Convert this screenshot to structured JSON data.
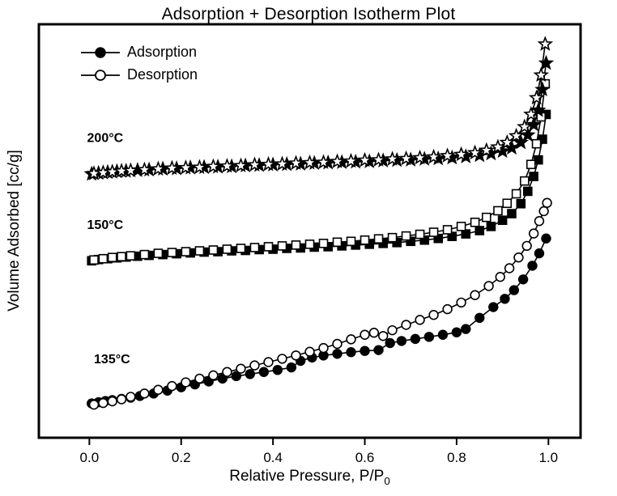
{
  "title": "Adsorption + Desorption Isotherm Plot",
  "chart_data": {
    "type": "line",
    "title": "Adsorption + Desorption Isotherm Plot",
    "xlabel": "Relative Pressure, P/P",
    "xlabel_sub": "0",
    "ylabel": "Volume Adsorbed [cc/g]",
    "xlim": [
      -0.11,
      1.07
    ],
    "ylim": [
      0,
      100
    ],
    "x_ticks": [
      0.0,
      0.2,
      0.4,
      0.6,
      0.8,
      1.0
    ],
    "x_tick_labels": [
      "0.0",
      "0.2",
      "0.4",
      "0.6",
      "0.8",
      "1.0"
    ],
    "y_tick_labels_shown": false,
    "grid": false,
    "line_color": "#000000",
    "background_color": "#ffffff",
    "legend": {
      "position": "top-left-inside",
      "items": [
        {
          "label": "Adsorption",
          "marker": "filled-circle"
        },
        {
          "label": "Desorption",
          "marker": "open-circle"
        }
      ]
    },
    "annotations": [
      {
        "text": "200°C",
        "x": -0.005,
        "y": 71.5
      },
      {
        "text": "150°C",
        "x": -0.005,
        "y": 50.5
      },
      {
        "text": "135°C",
        "x": 0.01,
        "y": 18.0
      }
    ],
    "series": [
      {
        "name": "135C-adsorption",
        "temperature": "135°C",
        "branch": "adsorption",
        "marker": "circle",
        "fill": "filled",
        "points": [
          [
            0.005,
            8.3
          ],
          [
            0.02,
            8.6
          ],
          [
            0.035,
            8.9
          ],
          [
            0.05,
            9.1
          ],
          [
            0.07,
            9.4
          ],
          [
            0.09,
            9.7
          ],
          [
            0.11,
            10.1
          ],
          [
            0.14,
            10.7
          ],
          [
            0.17,
            11.4
          ],
          [
            0.2,
            12.2
          ],
          [
            0.23,
            12.9
          ],
          [
            0.26,
            13.6
          ],
          [
            0.29,
            14.3
          ],
          [
            0.32,
            14.9
          ],
          [
            0.35,
            15.4
          ],
          [
            0.38,
            15.9
          ],
          [
            0.41,
            16.4
          ],
          [
            0.44,
            17.0
          ],
          [
            0.46,
            18.6
          ],
          [
            0.485,
            19.4
          ],
          [
            0.51,
            19.9
          ],
          [
            0.54,
            20.3
          ],
          [
            0.57,
            20.7
          ],
          [
            0.6,
            21.0
          ],
          [
            0.63,
            21.2
          ],
          [
            0.655,
            22.9
          ],
          [
            0.68,
            23.4
          ],
          [
            0.71,
            23.9
          ],
          [
            0.74,
            24.4
          ],
          [
            0.77,
            24.9
          ],
          [
            0.8,
            25.5
          ],
          [
            0.82,
            26.3
          ],
          [
            0.85,
            29.0
          ],
          [
            0.88,
            31.6
          ],
          [
            0.905,
            33.6
          ],
          [
            0.925,
            35.7
          ],
          [
            0.945,
            38.3
          ],
          [
            0.965,
            41.6
          ],
          [
            0.98,
            44.6
          ],
          [
            0.995,
            48.2
          ]
        ]
      },
      {
        "name": "135C-desorption",
        "temperature": "135°C",
        "branch": "desorption",
        "marker": "circle",
        "fill": "open",
        "points": [
          [
            0.01,
            8.0
          ],
          [
            0.03,
            8.4
          ],
          [
            0.05,
            8.8
          ],
          [
            0.07,
            9.3
          ],
          [
            0.09,
            9.9
          ],
          [
            0.12,
            10.7
          ],
          [
            0.15,
            11.6
          ],
          [
            0.18,
            12.5
          ],
          [
            0.21,
            13.4
          ],
          [
            0.24,
            14.3
          ],
          [
            0.27,
            15.1
          ],
          [
            0.3,
            15.9
          ],
          [
            0.33,
            16.7
          ],
          [
            0.36,
            17.5
          ],
          [
            0.39,
            18.3
          ],
          [
            0.42,
            19.1
          ],
          [
            0.45,
            19.9
          ],
          [
            0.48,
            20.8
          ],
          [
            0.51,
            21.7
          ],
          [
            0.54,
            22.7
          ],
          [
            0.57,
            23.8
          ],
          [
            0.6,
            24.9
          ],
          [
            0.62,
            25.4
          ],
          [
            0.64,
            24.6
          ],
          [
            0.66,
            26.0
          ],
          [
            0.69,
            27.3
          ],
          [
            0.72,
            28.5
          ],
          [
            0.75,
            29.7
          ],
          [
            0.78,
            31.1
          ],
          [
            0.81,
            32.7
          ],
          [
            0.84,
            34.5
          ],
          [
            0.87,
            36.7
          ],
          [
            0.895,
            38.9
          ],
          [
            0.915,
            41.0
          ],
          [
            0.935,
            43.6
          ],
          [
            0.953,
            46.4
          ],
          [
            0.968,
            49.4
          ],
          [
            0.98,
            52.4
          ],
          [
            0.99,
            54.8
          ],
          [
            0.997,
            56.8
          ]
        ]
      },
      {
        "name": "150C-adsorption",
        "temperature": "150°C",
        "branch": "adsorption",
        "marker": "square",
        "fill": "filled",
        "points": [
          [
            0.005,
            42.8
          ],
          [
            0.02,
            43.1
          ],
          [
            0.04,
            43.3
          ],
          [
            0.06,
            43.5
          ],
          [
            0.08,
            43.7
          ],
          [
            0.105,
            43.9
          ],
          [
            0.13,
            44.1
          ],
          [
            0.16,
            44.3
          ],
          [
            0.19,
            44.5
          ],
          [
            0.22,
            44.7
          ],
          [
            0.25,
            44.9
          ],
          [
            0.28,
            45.0
          ],
          [
            0.31,
            45.2
          ],
          [
            0.34,
            45.3
          ],
          [
            0.37,
            45.5
          ],
          [
            0.4,
            45.6
          ],
          [
            0.43,
            45.8
          ],
          [
            0.46,
            45.9
          ],
          [
            0.49,
            46.1
          ],
          [
            0.52,
            46.2
          ],
          [
            0.55,
            46.4
          ],
          [
            0.58,
            46.6
          ],
          [
            0.61,
            46.8
          ],
          [
            0.64,
            47.0
          ],
          [
            0.67,
            47.2
          ],
          [
            0.7,
            47.5
          ],
          [
            0.73,
            47.8
          ],
          [
            0.76,
            48.2
          ],
          [
            0.79,
            48.7
          ],
          [
            0.82,
            49.3
          ],
          [
            0.85,
            50.1
          ],
          [
            0.875,
            51.1
          ],
          [
            0.9,
            52.6
          ],
          [
            0.92,
            54.2
          ],
          [
            0.94,
            56.6
          ],
          [
            0.955,
            59.6
          ],
          [
            0.968,
            63.2
          ],
          [
            0.978,
            67.2
          ],
          [
            0.987,
            72.2
          ],
          [
            0.995,
            78.2
          ]
        ]
      },
      {
        "name": "150C-desorption",
        "temperature": "150°C",
        "branch": "desorption",
        "marker": "square",
        "fill": "open",
        "points": [
          [
            0.01,
            43.0
          ],
          [
            0.03,
            43.3
          ],
          [
            0.05,
            43.6
          ],
          [
            0.07,
            43.8
          ],
          [
            0.09,
            44.0
          ],
          [
            0.12,
            44.3
          ],
          [
            0.15,
            44.6
          ],
          [
            0.18,
            44.8
          ],
          [
            0.21,
            45.0
          ],
          [
            0.24,
            45.2
          ],
          [
            0.27,
            45.4
          ],
          [
            0.3,
            45.6
          ],
          [
            0.33,
            45.8
          ],
          [
            0.36,
            46.0
          ],
          [
            0.39,
            46.2
          ],
          [
            0.42,
            46.4
          ],
          [
            0.45,
            46.6
          ],
          [
            0.48,
            46.8
          ],
          [
            0.51,
            47.0
          ],
          [
            0.54,
            47.3
          ],
          [
            0.57,
            47.5
          ],
          [
            0.6,
            47.8
          ],
          [
            0.63,
            48.1
          ],
          [
            0.66,
            48.4
          ],
          [
            0.69,
            48.8
          ],
          [
            0.72,
            49.2
          ],
          [
            0.75,
            49.7
          ],
          [
            0.78,
            50.3
          ],
          [
            0.81,
            51.1
          ],
          [
            0.84,
            52.1
          ],
          [
            0.865,
            53.3
          ],
          [
            0.89,
            54.9
          ],
          [
            0.91,
            56.7
          ],
          [
            0.93,
            59.0
          ],
          [
            0.948,
            62.1
          ],
          [
            0.962,
            66.1
          ],
          [
            0.974,
            71.1
          ],
          [
            0.984,
            77.6
          ],
          [
            0.993,
            85.6
          ]
        ]
      },
      {
        "name": "200C-adsorption",
        "temperature": "200°C",
        "branch": "adsorption",
        "marker": "star",
        "fill": "filled",
        "points": [
          [
            0.005,
            63.8
          ],
          [
            0.02,
            64.0
          ],
          [
            0.04,
            64.2
          ],
          [
            0.06,
            64.4
          ],
          [
            0.08,
            64.5
          ],
          [
            0.105,
            64.7
          ],
          [
            0.13,
            64.8
          ],
          [
            0.16,
            65.0
          ],
          [
            0.19,
            65.1
          ],
          [
            0.22,
            65.3
          ],
          [
            0.25,
            65.4
          ],
          [
            0.28,
            65.5
          ],
          [
            0.31,
            65.6
          ],
          [
            0.34,
            65.8
          ],
          [
            0.37,
            65.9
          ],
          [
            0.4,
            66.0
          ],
          [
            0.43,
            66.1
          ],
          [
            0.46,
            66.2
          ],
          [
            0.49,
            66.4
          ],
          [
            0.52,
            66.5
          ],
          [
            0.55,
            66.6
          ],
          [
            0.58,
            66.7
          ],
          [
            0.61,
            66.8
          ],
          [
            0.64,
            67.0
          ],
          [
            0.67,
            67.1
          ],
          [
            0.7,
            67.2
          ],
          [
            0.73,
            67.4
          ],
          [
            0.76,
            67.5
          ],
          [
            0.79,
            67.7
          ],
          [
            0.82,
            68.0
          ],
          [
            0.85,
            68.3
          ],
          [
            0.875,
            68.7
          ],
          [
            0.9,
            69.3
          ],
          [
            0.92,
            70.1
          ],
          [
            0.94,
            71.4
          ],
          [
            0.955,
            73.2
          ],
          [
            0.968,
            75.7
          ],
          [
            0.978,
            79.2
          ],
          [
            0.987,
            84.2
          ],
          [
            0.995,
            90.6
          ]
        ]
      },
      {
        "name": "200C-desorption",
        "temperature": "200°C",
        "branch": "desorption",
        "marker": "star",
        "fill": "open",
        "points": [
          [
            0.01,
            63.9
          ],
          [
            0.03,
            64.1
          ],
          [
            0.05,
            64.3
          ],
          [
            0.07,
            64.5
          ],
          [
            0.09,
            64.6
          ],
          [
            0.12,
            64.8
          ],
          [
            0.15,
            65.0
          ],
          [
            0.18,
            65.2
          ],
          [
            0.21,
            65.3
          ],
          [
            0.24,
            65.4
          ],
          [
            0.27,
            65.6
          ],
          [
            0.3,
            65.7
          ],
          [
            0.33,
            65.8
          ],
          [
            0.36,
            66.0
          ],
          [
            0.39,
            66.1
          ],
          [
            0.42,
            66.2
          ],
          [
            0.45,
            66.4
          ],
          [
            0.48,
            66.5
          ],
          [
            0.51,
            66.6
          ],
          [
            0.54,
            66.8
          ],
          [
            0.57,
            66.9
          ],
          [
            0.6,
            67.1
          ],
          [
            0.63,
            67.2
          ],
          [
            0.66,
            67.4
          ],
          [
            0.69,
            67.5
          ],
          [
            0.72,
            67.7
          ],
          [
            0.75,
            67.9
          ],
          [
            0.78,
            68.2
          ],
          [
            0.81,
            68.5
          ],
          [
            0.84,
            68.9
          ],
          [
            0.865,
            69.5
          ],
          [
            0.89,
            70.3
          ],
          [
            0.91,
            71.4
          ],
          [
            0.93,
            73.0
          ],
          [
            0.948,
            75.2
          ],
          [
            0.962,
            78.2
          ],
          [
            0.974,
            82.2
          ],
          [
            0.984,
            87.7
          ],
          [
            0.993,
            95.2
          ]
        ]
      }
    ]
  }
}
